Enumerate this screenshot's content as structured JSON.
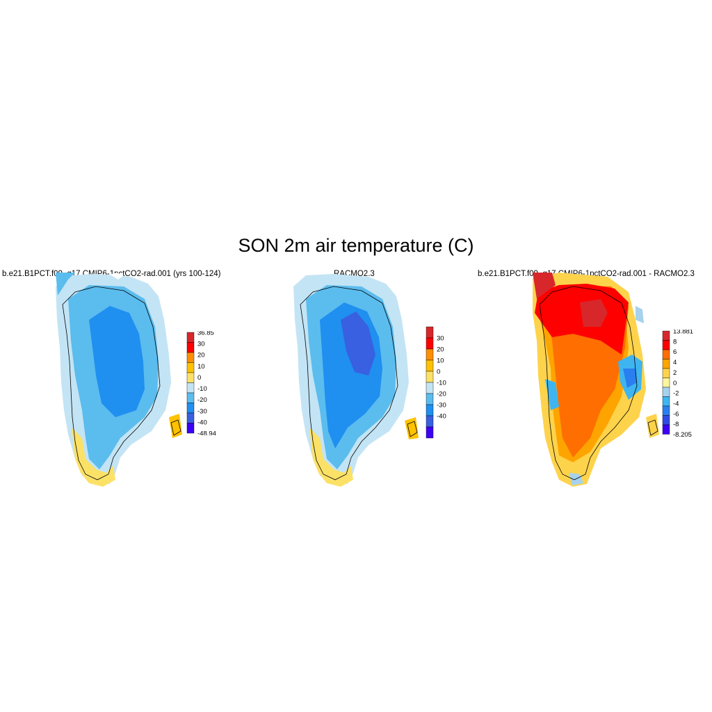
{
  "title": "SON 2m air temperature (C)",
  "panels": [
    {
      "title": "b.e21.B1PCT.f09_g17.CMIP6-1pctCO2-rad.001 (yrs 100-124)",
      "colorbar": {
        "labels": [
          "36.85",
          "30",
          "20",
          "10",
          "0",
          "-10",
          "-20",
          "-30",
          "-40",
          "-48.94"
        ],
        "colors": [
          "#d7272b",
          "#fe0000",
          "#fe8f00",
          "#fec200",
          "#fce167",
          "#c3e4f4",
          "#5bbcee",
          "#1f8ff0",
          "#3860e0",
          "#3c00f4"
        ]
      }
    },
    {
      "title": "RACMO2.3",
      "colorbar": {
        "labels": [
          "30",
          "20",
          "10",
          "0",
          "-10",
          "-20",
          "-30",
          "-40"
        ],
        "colors": [
          "#d7272b",
          "#fe0000",
          "#fe8f00",
          "#fec200",
          "#fce167",
          "#c3e4f4",
          "#5bbcee",
          "#1f8ff0",
          "#3860e0",
          "#3c00f4"
        ]
      }
    },
    {
      "title": "b.e21.B1PCT.f09_g17.CMIP6-1pctCO2-rad.001 - RACMO2.3",
      "colorbar": {
        "labels": [
          "13.881",
          "8",
          "6",
          "4",
          "2",
          "0",
          "-2",
          "-4",
          "-6",
          "-8",
          "-8.205"
        ],
        "colors": [
          "#d7272b",
          "#fe0000",
          "#fe6e00",
          "#fea400",
          "#fed34c",
          "#fdf59a",
          "#a6d2ee",
          "#3eb5f0",
          "#2a7ff0",
          "#304be4",
          "#3c00f4"
        ]
      }
    }
  ]
}
